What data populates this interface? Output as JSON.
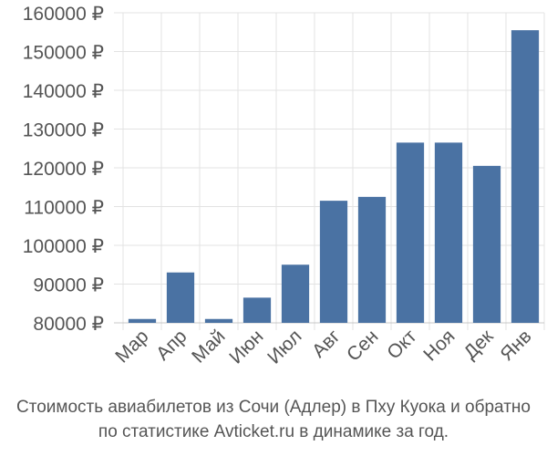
{
  "caption": {
    "line1": "Стоимость авиабилетов из Сочи (Адлер) в Пху Куока и обратно",
    "line2": "по статистике Avticket.ru в динамике за год."
  },
  "chart_data": {
    "type": "bar",
    "categories": [
      "Мар",
      "Апр",
      "Май",
      "Июн",
      "Июл",
      "Авг",
      "Сен",
      "Окт",
      "Ноя",
      "Дек",
      "Янв"
    ],
    "values": [
      81000,
      93000,
      81000,
      86500,
      95000,
      111500,
      112500,
      126500,
      126500,
      120500,
      155500
    ],
    "ylim": [
      80000,
      160000
    ],
    "yticks": [
      80000,
      90000,
      100000,
      110000,
      120000,
      130000,
      140000,
      150000,
      160000
    ],
    "tick_suffix": " ₽",
    "bar_color": "#4a72a3",
    "grid_color": "#e3e3e3",
    "axis_color": "#c8c8c8",
    "grid": true
  }
}
